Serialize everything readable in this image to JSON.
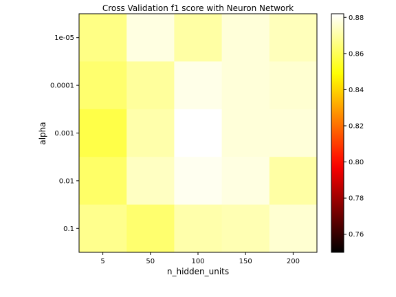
{
  "chart_data": {
    "type": "heatmap",
    "title": "Cross Validation f1 score with Neuron Network",
    "xlabel": "n_hidden_units",
    "ylabel": "alpha",
    "x_categories": [
      "5",
      "50",
      "100",
      "150",
      "200"
    ],
    "y_categories": [
      "1e-05",
      "0.0001",
      "0.001",
      "0.01",
      "0.1"
    ],
    "values": [
      [
        0.866,
        0.878,
        0.87,
        0.877,
        0.873
      ],
      [
        0.863,
        0.869,
        0.879,
        0.877,
        0.876
      ],
      [
        0.858,
        0.871,
        0.882,
        0.877,
        0.877
      ],
      [
        0.862,
        0.874,
        0.88,
        0.878,
        0.87
      ],
      [
        0.867,
        0.863,
        0.871,
        0.872,
        0.876
      ]
    ],
    "colormap": "hot",
    "color_range": [
      0.75,
      0.882
    ],
    "colorbar": {
      "ticks": [
        0.76,
        0.78,
        0.8,
        0.82,
        0.84,
        0.86,
        0.88
      ],
      "tick_labels": [
        "0.76",
        "0.78",
        "0.80",
        "0.82",
        "0.84",
        "0.86",
        "0.88"
      ]
    }
  }
}
